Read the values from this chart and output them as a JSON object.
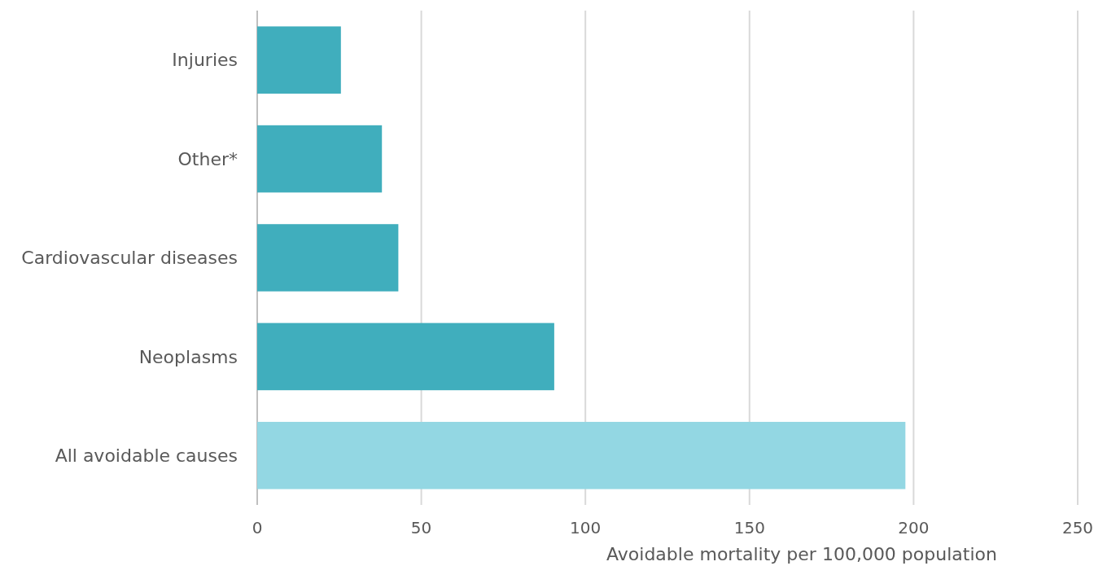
{
  "chart_data": {
    "type": "bar",
    "orientation": "horizontal",
    "xlabel": "Avoidable mortality per 100,000 population",
    "categories": [
      "Injuries",
      "Other*",
      "Cardiovascular diseases",
      "Neoplasms",
      "All avoidable causes"
    ],
    "values": [
      25.5,
      38,
      43,
      90.5,
      197.5
    ],
    "colors": [
      "#40aebd",
      "#40aebd",
      "#40aebd",
      "#40aebd",
      "#93d7e3"
    ],
    "xlim": [
      0,
      250
    ],
    "xticks": [
      0,
      50,
      100,
      150,
      200,
      250
    ],
    "grid": "x"
  }
}
